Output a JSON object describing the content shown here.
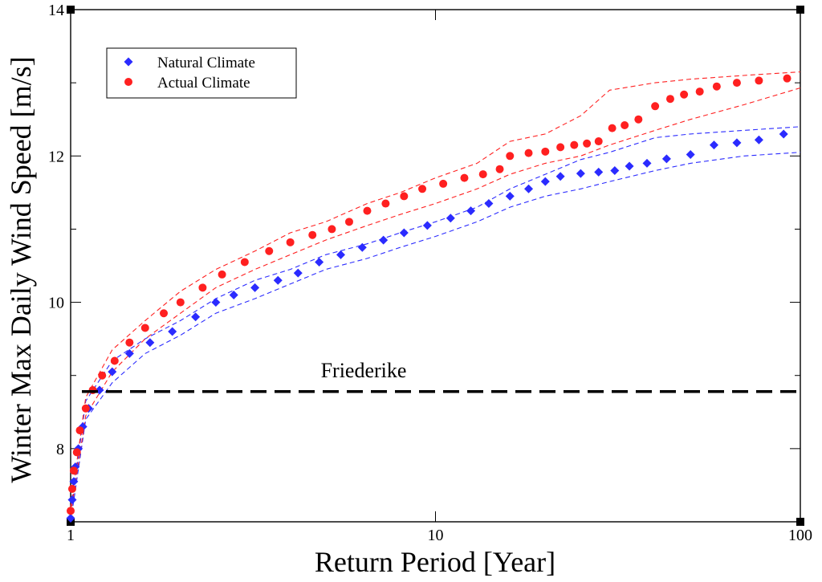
{
  "chart_data": {
    "type": "scatter",
    "xlabel": "Return Period [Year]",
    "ylabel": "Winter Max  Daily Wind Speed [m/s]",
    "x_scale": "log",
    "xlim": [
      1,
      100
    ],
    "ylim": [
      7,
      14
    ],
    "x_ticks": [
      1,
      10,
      100
    ],
    "x_tick_labels": [
      "1",
      "10",
      "100"
    ],
    "y_ticks": [
      8,
      10,
      12,
      14
    ],
    "y_tick_labels": [
      "8",
      "10",
      "12",
      "14"
    ],
    "legend_placement": "top-left",
    "grid": false,
    "reference_line": {
      "label": "Friederike",
      "y": 8.78,
      "style": "dashed",
      "color": "#000000"
    },
    "series": [
      {
        "name": "Natural Climate",
        "color": "#2b2bff",
        "marker": "diamond",
        "points": [
          [
            1.0,
            7.05
          ],
          [
            1.01,
            7.3
          ],
          [
            1.02,
            7.55
          ],
          [
            1.03,
            7.75
          ],
          [
            1.05,
            8.0
          ],
          [
            1.08,
            8.3
          ],
          [
            1.12,
            8.55
          ],
          [
            1.2,
            8.8
          ],
          [
            1.3,
            9.05
          ],
          [
            1.45,
            9.3
          ],
          [
            1.65,
            9.45
          ],
          [
            1.9,
            9.6
          ],
          [
            2.2,
            9.8
          ],
          [
            2.5,
            10.0
          ],
          [
            2.8,
            10.1
          ],
          [
            3.2,
            10.2
          ],
          [
            3.7,
            10.3
          ],
          [
            4.2,
            10.4
          ],
          [
            4.8,
            10.55
          ],
          [
            5.5,
            10.65
          ],
          [
            6.3,
            10.75
          ],
          [
            7.2,
            10.85
          ],
          [
            8.2,
            10.95
          ],
          [
            9.5,
            11.05
          ],
          [
            11,
            11.15
          ],
          [
            12.5,
            11.25
          ],
          [
            14,
            11.35
          ],
          [
            16,
            11.45
          ],
          [
            18,
            11.55
          ],
          [
            20,
            11.65
          ],
          [
            22,
            11.72
          ],
          [
            25,
            11.76
          ],
          [
            28,
            11.78
          ],
          [
            31,
            11.8
          ],
          [
            34,
            11.86
          ],
          [
            38,
            11.9
          ],
          [
            43,
            11.96
          ],
          [
            50,
            12.02
          ],
          [
            58,
            12.15
          ],
          [
            67,
            12.18
          ],
          [
            77,
            12.22
          ],
          [
            90,
            12.3
          ]
        ],
        "ci_lower": [
          [
            1.0,
            7.0
          ],
          [
            1.1,
            8.4
          ],
          [
            1.3,
            8.9
          ],
          [
            1.6,
            9.3
          ],
          [
            2.0,
            9.55
          ],
          [
            2.5,
            9.85
          ],
          [
            3.2,
            10.05
          ],
          [
            4.0,
            10.25
          ],
          [
            5.0,
            10.45
          ],
          [
            6.5,
            10.6
          ],
          [
            8.0,
            10.75
          ],
          [
            10,
            10.9
          ],
          [
            13,
            11.1
          ],
          [
            16,
            11.3
          ],
          [
            20,
            11.45
          ],
          [
            25,
            11.55
          ],
          [
            30,
            11.65
          ],
          [
            40,
            11.8
          ],
          [
            50,
            11.9
          ],
          [
            70,
            12.0
          ],
          [
            100,
            12.05
          ]
        ],
        "ci_upper": [
          [
            1.0,
            7.1
          ],
          [
            1.1,
            8.65
          ],
          [
            1.3,
            9.2
          ],
          [
            1.6,
            9.5
          ],
          [
            2.0,
            9.75
          ],
          [
            2.5,
            10.05
          ],
          [
            3.2,
            10.3
          ],
          [
            4.0,
            10.45
          ],
          [
            5.0,
            10.65
          ],
          [
            6.5,
            10.8
          ],
          [
            8.0,
            10.95
          ],
          [
            10,
            11.1
          ],
          [
            13,
            11.3
          ],
          [
            16,
            11.55
          ],
          [
            20,
            11.75
          ],
          [
            25,
            11.95
          ],
          [
            30,
            12.05
          ],
          [
            40,
            12.25
          ],
          [
            50,
            12.3
          ],
          [
            70,
            12.35
          ],
          [
            100,
            12.4
          ]
        ]
      },
      {
        "name": "Actual Climate",
        "color": "#ff2020",
        "marker": "circle",
        "points": [
          [
            1.0,
            7.15
          ],
          [
            1.01,
            7.45
          ],
          [
            1.02,
            7.7
          ],
          [
            1.04,
            7.95
          ],
          [
            1.06,
            8.25
          ],
          [
            1.1,
            8.55
          ],
          [
            1.15,
            8.8
          ],
          [
            1.22,
            9.0
          ],
          [
            1.32,
            9.2
          ],
          [
            1.45,
            9.45
          ],
          [
            1.6,
            9.65
          ],
          [
            1.8,
            9.85
          ],
          [
            2.0,
            10.0
          ],
          [
            2.3,
            10.2
          ],
          [
            2.6,
            10.38
          ],
          [
            3.0,
            10.55
          ],
          [
            3.5,
            10.7
          ],
          [
            4.0,
            10.82
          ],
          [
            4.6,
            10.92
          ],
          [
            5.2,
            11.0
          ],
          [
            5.8,
            11.1
          ],
          [
            6.5,
            11.25
          ],
          [
            7.3,
            11.35
          ],
          [
            8.2,
            11.45
          ],
          [
            9.2,
            11.55
          ],
          [
            10.5,
            11.62
          ],
          [
            12,
            11.7
          ],
          [
            13.5,
            11.75
          ],
          [
            15,
            11.82
          ],
          [
            16,
            12.0
          ],
          [
            18,
            12.04
          ],
          [
            20,
            12.06
          ],
          [
            22,
            12.12
          ],
          [
            24,
            12.15
          ],
          [
            26,
            12.17
          ],
          [
            28,
            12.2
          ],
          [
            30.5,
            12.38
          ],
          [
            33,
            12.42
          ],
          [
            36,
            12.5
          ],
          [
            40,
            12.68
          ],
          [
            44,
            12.78
          ],
          [
            48,
            12.84
          ],
          [
            53,
            12.88
          ],
          [
            59,
            12.95
          ],
          [
            67,
            13.0
          ],
          [
            77,
            13.03
          ],
          [
            92,
            13.06
          ]
        ],
        "ci_lower": [
          [
            1.0,
            7.1
          ],
          [
            1.1,
            8.45
          ],
          [
            1.3,
            9.05
          ],
          [
            1.6,
            9.5
          ],
          [
            2.0,
            9.85
          ],
          [
            2.5,
            10.2
          ],
          [
            3.2,
            10.45
          ],
          [
            4.0,
            10.65
          ],
          [
            5.0,
            10.85
          ],
          [
            6.5,
            11.05
          ],
          [
            8.0,
            11.2
          ],
          [
            10,
            11.35
          ],
          [
            13,
            11.55
          ],
          [
            16,
            11.75
          ],
          [
            20,
            11.9
          ],
          [
            25,
            12.0
          ],
          [
            30,
            12.15
          ],
          [
            40,
            12.35
          ],
          [
            50,
            12.5
          ],
          [
            70,
            12.7
          ],
          [
            100,
            12.93
          ]
        ],
        "ci_upper": [
          [
            1.0,
            7.2
          ],
          [
            1.1,
            8.7
          ],
          [
            1.3,
            9.35
          ],
          [
            1.6,
            9.75
          ],
          [
            2.0,
            10.15
          ],
          [
            2.5,
            10.45
          ],
          [
            3.2,
            10.7
          ],
          [
            4.0,
            10.95
          ],
          [
            5.0,
            11.1
          ],
          [
            6.5,
            11.35
          ],
          [
            8.0,
            11.5
          ],
          [
            10,
            11.7
          ],
          [
            13,
            11.9
          ],
          [
            16,
            12.2
          ],
          [
            20,
            12.3
          ],
          [
            25,
            12.55
          ],
          [
            30,
            12.9
          ],
          [
            40,
            13.0
          ],
          [
            50,
            13.05
          ],
          [
            70,
            13.1
          ],
          [
            100,
            13.15
          ]
        ]
      }
    ]
  }
}
